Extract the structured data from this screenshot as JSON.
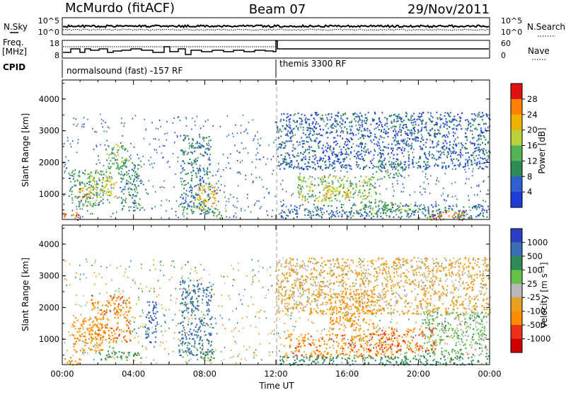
{
  "header": {
    "station": "McMurdo (fitACF)",
    "beam": "Beam 07",
    "date": "29/Nov/2011"
  },
  "sky_panel": {
    "left_label": "N.Sky",
    "right_label": "N.Search",
    "left_ticks": [
      "10^5",
      "10^0"
    ],
    "right_ticks": [
      "10^5",
      "10^0"
    ]
  },
  "freq_panel": {
    "left_label_1": "Freq.",
    "left_label_2": "[MHz]",
    "right_label": "Nave",
    "left_ticks": [
      "18",
      "8"
    ],
    "right_ticks": [
      "60",
      "0"
    ]
  },
  "cpid": {
    "label": "CPID",
    "segments": [
      {
        "text": "normalsound (fast) -157 RF",
        "start_hour": 0
      },
      {
        "text": "themis 3300 RF",
        "start_hour": 12
      }
    ]
  },
  "colors": {
    "power_scale": [
      "#1f3bd6",
      "#2f5fd0",
      "#2e8b57",
      "#55b255",
      "#b7d23a",
      "#f0b000",
      "#ff7f00",
      "#e01010"
    ],
    "velocity_scale": [
      "#2c3fc2",
      "#3a6fb2",
      "#2e8b57",
      "#66c04a",
      "#b8b8b8",
      "#e8a020",
      "#ff8c00",
      "#e8301a",
      "#cc0000"
    ]
  },
  "chart_data": [
    {
      "type": "heatmap",
      "name": "power",
      "xlabel": "",
      "ylabel": "Slant Range [km]",
      "yticks": [
        "1000",
        "2000",
        "3000",
        "4000"
      ],
      "ylim": [
        200,
        4600
      ],
      "xlim": [
        0,
        24
      ],
      "colorbar": {
        "label": "Power [dB]",
        "ticks": [
          "4",
          "8",
          "12",
          "16",
          "20",
          "24",
          "28"
        ],
        "range": [
          0,
          32
        ]
      },
      "regions": [
        {
          "t0": 0.0,
          "t1": 0.9,
          "r0": 200,
          "r1": 450,
          "level": 28
        },
        {
          "t0": 0.3,
          "t1": 2.3,
          "r0": 600,
          "r1": 1800,
          "level": 12
        },
        {
          "t0": 0.9,
          "t1": 1.6,
          "r0": 850,
          "r1": 1250,
          "level": 24
        },
        {
          "t0": 1.5,
          "t1": 3.0,
          "r0": 900,
          "r1": 1600,
          "level": 18
        },
        {
          "t0": 2.4,
          "t1": 3.6,
          "r0": 1600,
          "r1": 2600,
          "level": 14
        },
        {
          "t0": 3.2,
          "t1": 4.4,
          "r0": 500,
          "r1": 2100,
          "level": 10
        },
        {
          "t0": 6.6,
          "t1": 8.3,
          "r0": 400,
          "r1": 2900,
          "level": 9
        },
        {
          "t0": 7.5,
          "t1": 8.7,
          "r0": 500,
          "r1": 1300,
          "level": 22
        },
        {
          "t0": 8.2,
          "t1": 9.2,
          "r0": 250,
          "r1": 600,
          "level": 14
        },
        {
          "t0": 12.2,
          "t1": 23.9,
          "r0": 250,
          "r1": 700,
          "level": 8
        },
        {
          "t0": 13.2,
          "t1": 17.6,
          "r0": 800,
          "r1": 1600,
          "level": 16
        },
        {
          "t0": 14.5,
          "t1": 16.2,
          "r0": 900,
          "r1": 1300,
          "level": 22
        },
        {
          "t0": 16.6,
          "t1": 19.6,
          "r0": 400,
          "r1": 800,
          "level": 13
        },
        {
          "t0": 17.6,
          "t1": 19.1,
          "r0": 1500,
          "r1": 2100,
          "level": 12
        },
        {
          "t0": 20.6,
          "t1": 22.6,
          "r0": 200,
          "r1": 500,
          "level": 27
        },
        {
          "t0": 12.0,
          "t1": 24.0,
          "r0": 1800,
          "r1": 3600,
          "level": 6
        }
      ]
    },
    {
      "type": "heatmap",
      "name": "velocity",
      "xlabel": "Time UT",
      "ylabel": "Slant Range [km]",
      "xticks": [
        "00:00",
        "04:00",
        "08:00",
        "12:00",
        "16:00",
        "20:00",
        "00:00"
      ],
      "yticks": [
        "1000",
        "2000",
        "3000",
        "4000"
      ],
      "ylim": [
        200,
        4600
      ],
      "xlim": [
        0,
        24
      ],
      "colorbar": {
        "label": "Velocity [m s⁻¹]",
        "ticks": [
          "1000",
          "500",
          "100",
          "25",
          "-25",
          "-100",
          "-500",
          "-1000"
        ],
        "range": [
          -1200,
          1200
        ]
      },
      "regions": [
        {
          "t0": 0.0,
          "t1": 1.0,
          "r0": 200,
          "r1": 450,
          "level": -150
        },
        {
          "t0": 0.5,
          "t1": 2.3,
          "r0": 600,
          "r1": 1700,
          "level": -300
        },
        {
          "t0": 1.6,
          "t1": 3.8,
          "r0": 900,
          "r1": 2400,
          "level": -400
        },
        {
          "t0": 2.0,
          "t1": 4.5,
          "r0": 350,
          "r1": 650,
          "level": 150
        },
        {
          "t0": 4.6,
          "t1": 5.3,
          "r0": 900,
          "r1": 2200,
          "level": 900
        },
        {
          "t0": 6.5,
          "t1": 8.4,
          "r0": 500,
          "r1": 2900,
          "level": 700
        },
        {
          "t0": 7.6,
          "t1": 8.6,
          "r0": 350,
          "r1": 700,
          "level": 150
        },
        {
          "t0": 12.4,
          "t1": 18.6,
          "r0": 450,
          "r1": 1200,
          "level": -400
        },
        {
          "t0": 15.0,
          "t1": 17.5,
          "r0": 1300,
          "r1": 2500,
          "level": -350
        },
        {
          "t0": 17.6,
          "t1": 21.0,
          "r0": 600,
          "r1": 1400,
          "level": -450
        },
        {
          "t0": 20.2,
          "t1": 23.8,
          "r0": 500,
          "r1": 1900,
          "level": 60
        },
        {
          "t0": 12.2,
          "t1": 23.9,
          "r0": 200,
          "r1": 500,
          "level": 200
        },
        {
          "t0": 12.0,
          "t1": 24.0,
          "r0": 1800,
          "r1": 3600,
          "level": -60
        }
      ]
    }
  ]
}
